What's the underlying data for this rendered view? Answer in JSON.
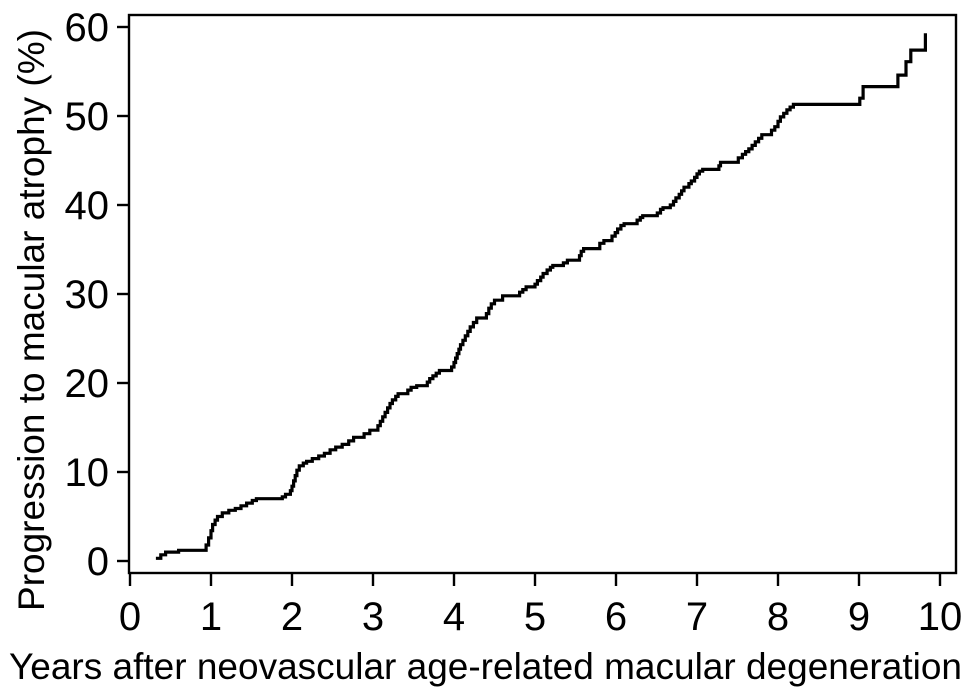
{
  "figure": {
    "background": "#ffffff",
    "axis_color": "#000000"
  },
  "chart_data": {
    "type": "line",
    "subtype": "step",
    "title": "",
    "xlabel": "Years after neovascular age-related macular degeneration",
    "ylabel": "Progression to macular atrophy (%)",
    "xlim": [
      0,
      10
    ],
    "ylim": [
      0,
      60
    ],
    "xticks": [
      0,
      1,
      2,
      3,
      4,
      5,
      6,
      7,
      8,
      9,
      10
    ],
    "yticks": [
      0,
      10,
      20,
      30,
      40,
      50,
      60
    ],
    "grid": false,
    "legend": "none",
    "line_color": "#000000",
    "series": [
      {
        "name": "Progression to macular atrophy",
        "style": "step-after",
        "points": [
          [
            0.32,
            0.3
          ],
          [
            0.38,
            0.7
          ],
          [
            0.44,
            1.0
          ],
          [
            0.6,
            1.2
          ],
          [
            0.94,
            1.8
          ],
          [
            0.97,
            2.6
          ],
          [
            1.0,
            3.4
          ],
          [
            1.02,
            4.1
          ],
          [
            1.05,
            4.6
          ],
          [
            1.08,
            5.0
          ],
          [
            1.14,
            5.4
          ],
          [
            1.22,
            5.7
          ],
          [
            1.3,
            5.9
          ],
          [
            1.37,
            6.2
          ],
          [
            1.44,
            6.5
          ],
          [
            1.51,
            6.8
          ],
          [
            1.56,
            7.0
          ],
          [
            1.88,
            7.2
          ],
          [
            1.92,
            7.5
          ],
          [
            1.98,
            7.9
          ],
          [
            2.0,
            8.4
          ],
          [
            2.02,
            9.0
          ],
          [
            2.04,
            9.6
          ],
          [
            2.06,
            10.2
          ],
          [
            2.09,
            10.7
          ],
          [
            2.14,
            11.0
          ],
          [
            2.18,
            11.2
          ],
          [
            2.25,
            11.5
          ],
          [
            2.33,
            11.8
          ],
          [
            2.4,
            12.1
          ],
          [
            2.47,
            12.5
          ],
          [
            2.54,
            12.8
          ],
          [
            2.62,
            13.1
          ],
          [
            2.7,
            13.5
          ],
          [
            2.76,
            13.9
          ],
          [
            2.89,
            14.3
          ],
          [
            2.96,
            14.7
          ],
          [
            3.06,
            15.2
          ],
          [
            3.09,
            15.7
          ],
          [
            3.12,
            16.2
          ],
          [
            3.15,
            16.7
          ],
          [
            3.18,
            17.2
          ],
          [
            3.21,
            17.7
          ],
          [
            3.24,
            18.1
          ],
          [
            3.28,
            18.5
          ],
          [
            3.31,
            18.8
          ],
          [
            3.43,
            19.2
          ],
          [
            3.47,
            19.5
          ],
          [
            3.54,
            19.7
          ],
          [
            3.67,
            20.1
          ],
          [
            3.7,
            20.5
          ],
          [
            3.74,
            20.8
          ],
          [
            3.78,
            21.1
          ],
          [
            3.82,
            21.4
          ],
          [
            3.97,
            21.8
          ],
          [
            4.0,
            22.3
          ],
          [
            4.02,
            22.8
          ],
          [
            4.04,
            23.3
          ],
          [
            4.06,
            23.8
          ],
          [
            4.08,
            24.3
          ],
          [
            4.11,
            24.8
          ],
          [
            4.14,
            25.3
          ],
          [
            4.17,
            25.8
          ],
          [
            4.2,
            26.3
          ],
          [
            4.24,
            26.8
          ],
          [
            4.28,
            27.3
          ],
          [
            4.4,
            27.8
          ],
          [
            4.43,
            28.4
          ],
          [
            4.46,
            28.9
          ],
          [
            4.5,
            29.3
          ],
          [
            4.6,
            29.8
          ],
          [
            4.81,
            30.2
          ],
          [
            4.85,
            30.5
          ],
          [
            4.89,
            30.8
          ],
          [
            5.0,
            31.1
          ],
          [
            5.03,
            31.5
          ],
          [
            5.07,
            31.9
          ],
          [
            5.1,
            32.3
          ],
          [
            5.15,
            32.7
          ],
          [
            5.19,
            33.0
          ],
          [
            5.22,
            33.2
          ],
          [
            5.35,
            33.5
          ],
          [
            5.4,
            33.8
          ],
          [
            5.55,
            34.3
          ],
          [
            5.57,
            34.8
          ],
          [
            5.6,
            35.1
          ],
          [
            5.8,
            35.7
          ],
          [
            5.85,
            36.0
          ],
          [
            5.95,
            36.5
          ],
          [
            5.99,
            36.9
          ],
          [
            6.02,
            37.3
          ],
          [
            6.06,
            37.7
          ],
          [
            6.1,
            37.9
          ],
          [
            6.26,
            38.3
          ],
          [
            6.3,
            38.6
          ],
          [
            6.33,
            38.8
          ],
          [
            6.51,
            39.1
          ],
          [
            6.55,
            39.5
          ],
          [
            6.58,
            39.7
          ],
          [
            6.67,
            40.0
          ],
          [
            6.71,
            40.4
          ],
          [
            6.74,
            40.8
          ],
          [
            6.78,
            41.2
          ],
          [
            6.81,
            41.6
          ],
          [
            6.84,
            42.0
          ],
          [
            6.9,
            42.4
          ],
          [
            6.93,
            42.7
          ],
          [
            6.97,
            43.1
          ],
          [
            7.0,
            43.5
          ],
          [
            7.03,
            43.8
          ],
          [
            7.07,
            44.0
          ],
          [
            7.27,
            44.4
          ],
          [
            7.29,
            44.8
          ],
          [
            7.51,
            45.3
          ],
          [
            7.56,
            45.7
          ],
          [
            7.6,
            46.0
          ],
          [
            7.64,
            46.3
          ],
          [
            7.68,
            46.7
          ],
          [
            7.72,
            47.1
          ],
          [
            7.76,
            47.5
          ],
          [
            7.8,
            47.9
          ],
          [
            7.92,
            48.4
          ],
          [
            7.96,
            48.8
          ],
          [
            8.0,
            49.4
          ],
          [
            8.03,
            49.9
          ],
          [
            8.07,
            50.3
          ],
          [
            8.11,
            50.7
          ],
          [
            8.15,
            51.0
          ],
          [
            8.19,
            51.3
          ],
          [
            9.01,
            52.0
          ],
          [
            9.05,
            53.3
          ],
          [
            9.48,
            54.6
          ],
          [
            9.58,
            56.1
          ],
          [
            9.64,
            57.4
          ],
          [
            9.82,
            59.3
          ]
        ]
      }
    ]
  }
}
